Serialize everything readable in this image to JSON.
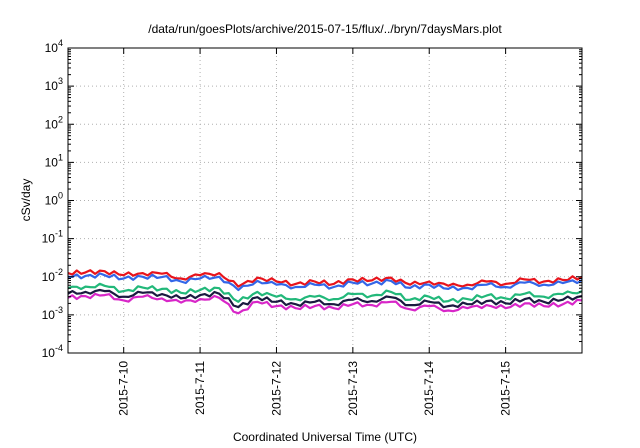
{
  "chart_data": {
    "type": "line",
    "title": "/data/run/goesPlots/archive/2015-07-15/flux/../bryn/7daysMars.plot",
    "xlabel": "Coordinated Universal Time (UTC)",
    "ylabel": "cSv/day",
    "y_scale": "log",
    "ylim": [
      0.0001,
      10000
    ],
    "y_ticks": [
      {
        "value": 0.0001,
        "base": "10",
        "exp": "-4"
      },
      {
        "value": 0.001,
        "base": "10",
        "exp": "-3"
      },
      {
        "value": 0.01,
        "base": "10",
        "exp": "-2"
      },
      {
        "value": 0.1,
        "base": "10",
        "exp": "-1"
      },
      {
        "value": 1,
        "base": "10",
        "exp": "0"
      },
      {
        "value": 10,
        "base": "10",
        "exp": "1"
      },
      {
        "value": 100,
        "base": "10",
        "exp": "2"
      },
      {
        "value": 1000,
        "base": "10",
        "exp": "3"
      },
      {
        "value": 10000,
        "base": "10",
        "exp": "4"
      }
    ],
    "x_ticks": [
      "2015-7-10",
      "2015-7-11",
      "2015-7-12",
      "2015-7-13",
      "2015-7-14",
      "2015-7-15"
    ],
    "xlim": [
      "2015-07-09 06:30",
      "2015-07-16 00:00"
    ],
    "grid": true,
    "legend": "none",
    "x": [
      "2015-07-09 06:30",
      "2015-07-09 12:00",
      "2015-07-09 18:00",
      "2015-07-10 00:00",
      "2015-07-10 06:00",
      "2015-07-10 12:00",
      "2015-07-10 18:00",
      "2015-07-11 00:00",
      "2015-07-11 06:00",
      "2015-07-11 12:00",
      "2015-07-11 18:00",
      "2015-07-12 00:00",
      "2015-07-12 06:00",
      "2015-07-12 12:00",
      "2015-07-12 18:00",
      "2015-07-13 00:00",
      "2015-07-13 06:00",
      "2015-07-13 12:00",
      "2015-07-13 18:00",
      "2015-07-14 00:00",
      "2015-07-14 06:00",
      "2015-07-14 12:00",
      "2015-07-14 18:00",
      "2015-07-15 00:00",
      "2015-07-15 06:00",
      "2015-07-15 12:00",
      "2015-07-15 18:00",
      "2015-07-16 00:00"
    ],
    "series": [
      {
        "color": "#e8141c",
        "values": [
          0.0125,
          0.013,
          0.014,
          0.011,
          0.0125,
          0.012,
          0.009,
          0.011,
          0.0125,
          0.0055,
          0.0095,
          0.0075,
          0.0065,
          0.0075,
          0.0065,
          0.0085,
          0.008,
          0.0095,
          0.0062,
          0.0075,
          0.0058,
          0.0062,
          0.0075,
          0.0065,
          0.0085,
          0.0075,
          0.0082,
          0.01
        ]
      },
      {
        "color": "#3366e8",
        "values": [
          0.01,
          0.0105,
          0.011,
          0.009,
          0.01,
          0.0098,
          0.0075,
          0.009,
          0.01,
          0.0045,
          0.0078,
          0.0062,
          0.0054,
          0.0062,
          0.0054,
          0.007,
          0.0066,
          0.0078,
          0.0051,
          0.0062,
          0.0048,
          0.0051,
          0.0062,
          0.0054,
          0.007,
          0.0062,
          0.0068,
          0.0082
        ]
      },
      {
        "color": "#22b87a",
        "values": [
          0.005,
          0.0055,
          0.0058,
          0.0042,
          0.0052,
          0.0048,
          0.0038,
          0.0045,
          0.005,
          0.0022,
          0.004,
          0.003,
          0.0026,
          0.003,
          0.0026,
          0.0035,
          0.0032,
          0.004,
          0.0025,
          0.003,
          0.0023,
          0.0026,
          0.0032,
          0.0027,
          0.0036,
          0.003,
          0.0035,
          0.0042
        ]
      },
      {
        "color": "#1a1a40",
        "values": [
          0.0036,
          0.004,
          0.0042,
          0.003,
          0.0038,
          0.0035,
          0.0027,
          0.0033,
          0.0036,
          0.0016,
          0.0029,
          0.0022,
          0.0019,
          0.0022,
          0.0019,
          0.0025,
          0.0023,
          0.0029,
          0.0018,
          0.0022,
          0.0017,
          0.0019,
          0.0023,
          0.002,
          0.0026,
          0.0022,
          0.0025,
          0.0031
        ]
      },
      {
        "color": "#d826c8",
        "values": [
          0.0028,
          0.0031,
          0.0033,
          0.0024,
          0.003,
          0.0027,
          0.0021,
          0.0026,
          0.0028,
          0.0011,
          0.0022,
          0.0017,
          0.0015,
          0.0017,
          0.0015,
          0.0019,
          0.0018,
          0.0022,
          0.0014,
          0.0017,
          0.0013,
          0.0015,
          0.0018,
          0.0015,
          0.002,
          0.0017,
          0.0019,
          0.0024
        ]
      }
    ]
  }
}
